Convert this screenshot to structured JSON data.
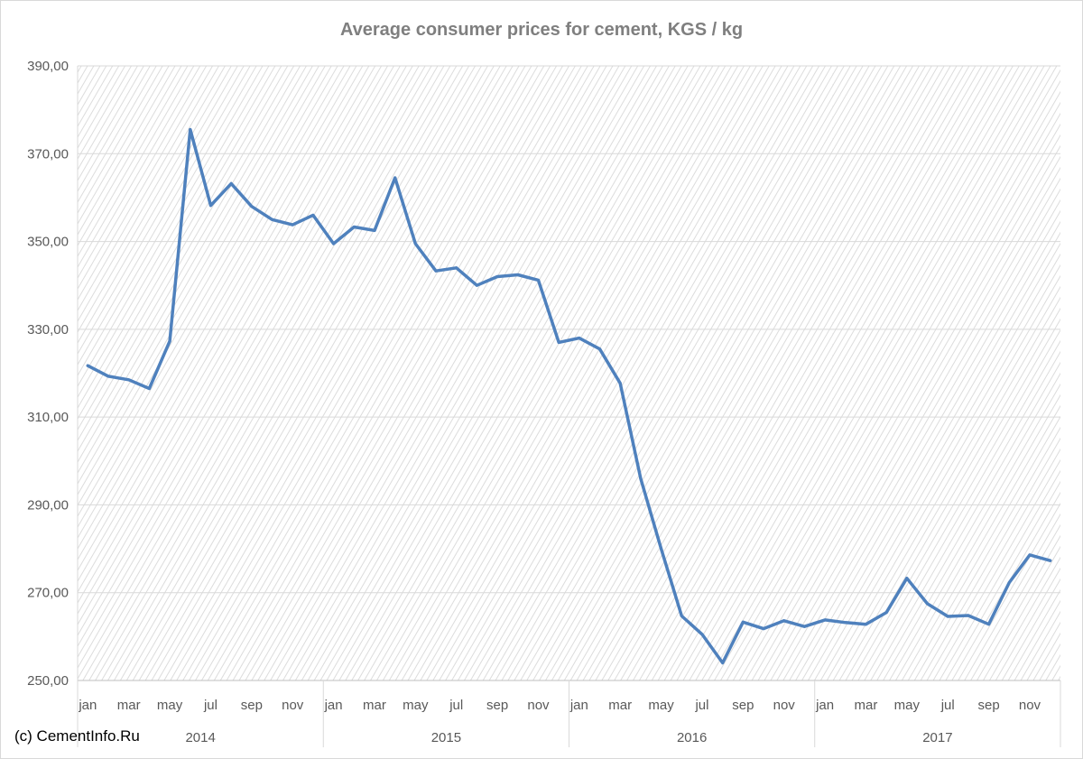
{
  "credit": "(c) CementInfo.Ru",
  "chart_data": {
    "type": "line",
    "title": "Average consumer prices for cement, KGS / kg",
    "xlabel": "",
    "ylabel": "",
    "ylim": [
      250,
      390
    ],
    "yticks": [
      "250,00",
      "270,00",
      "290,00",
      "310,00",
      "330,00",
      "350,00",
      "370,00",
      "390,00"
    ],
    "grid": true,
    "month_labels": [
      "jan",
      "",
      "mar",
      "",
      "may",
      "",
      "jul",
      "",
      "sep",
      "",
      "nov",
      ""
    ],
    "years": [
      "2014",
      "2015",
      "2016",
      "2017"
    ],
    "colors": {
      "line": "#4f81bd",
      "grid": "#d9d9d9",
      "hatch": "#dcdcdc"
    },
    "series": [
      {
        "values": [
          321.7,
          319.3,
          318.5,
          316.5,
          327.3,
          375.5,
          358.2,
          363.2,
          358.0,
          355.0,
          353.8,
          356.0,
          349.5,
          353.3,
          352.5,
          364.5,
          349.5,
          343.3,
          344.0,
          340.0,
          342.0,
          342.4,
          341.2,
          327.0,
          328.0,
          325.5,
          317.7,
          296.0,
          280.0,
          264.7,
          260.5,
          254.0,
          263.3,
          261.8,
          263.6,
          262.3,
          263.8,
          263.2,
          262.8,
          265.5,
          273.3,
          267.5,
          264.6,
          264.8,
          262.8,
          272.3,
          278.6,
          277.3
        ]
      }
    ]
  }
}
